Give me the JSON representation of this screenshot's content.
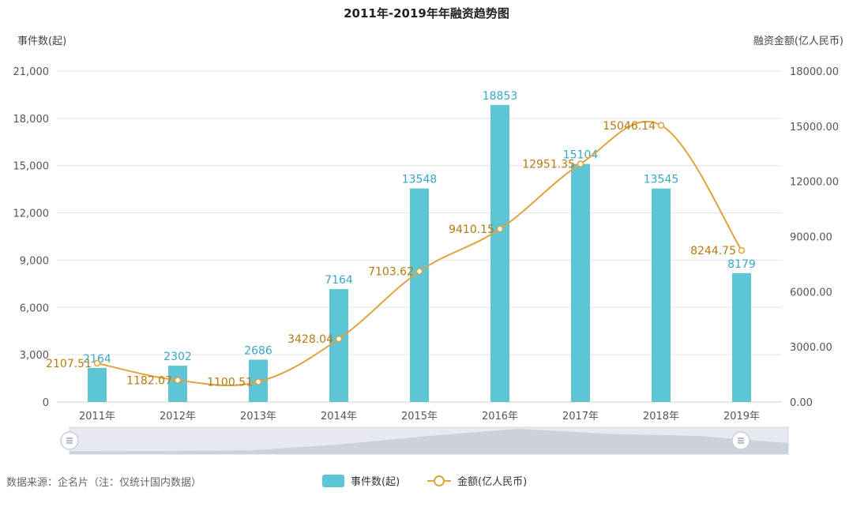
{
  "title": "2011年-2019年年融资趋势图",
  "left_axis_name": "事件数(起)",
  "right_axis_name": "融资金额(亿人民币)",
  "source": "数据来源：企名片（注：仅统计国内数据）",
  "legend": {
    "bar": "事件数(起)",
    "line": "金额(亿人民币)"
  },
  "colors": {
    "bar": "#5ec5d6",
    "line": "#e0a33d",
    "point_fill": "#ffffff",
    "bar_label": "#36a8c4",
    "line_label": "#b57a10",
    "grid": "#e4e4e4",
    "zoom_track": "#e6e9ef",
    "zoom_area": "#c9ced9"
  },
  "left_axis_ticks": [
    "0",
    "3,000",
    "6,000",
    "9,000",
    "12,000",
    "15,000",
    "18,000",
    "21,000"
  ],
  "right_axis_ticks": [
    "0.00",
    "3000.00",
    "6000.00",
    "9000.00",
    "12000.00",
    "15000.00",
    "18000.00"
  ],
  "chart_data": {
    "type": "bar",
    "title": "2011年-2019年年融资趋势图",
    "categories": [
      "2011年",
      "2012年",
      "2013年",
      "2014年",
      "2015年",
      "2016年",
      "2017年",
      "2018年",
      "2019年"
    ],
    "series": [
      {
        "name": "事件数(起)",
        "type": "bar",
        "axis": "left",
        "values": [
          2164,
          2302,
          2686,
          7164,
          13548,
          18853,
          15104,
          13545,
          8179
        ],
        "labels": [
          "2164",
          "2302",
          "2686",
          "7164",
          "13548",
          "18853",
          "15104",
          "13545",
          "8179"
        ]
      },
      {
        "name": "金额(亿人民币)",
        "type": "line",
        "axis": "right",
        "values": [
          2107.51,
          1182.07,
          1100.51,
          3428.04,
          7103.62,
          9410.15,
          12951.35,
          15046.14,
          8244.75
        ],
        "labels": [
          "2107.51",
          "1182.07",
          "1100.51",
          "3428.04",
          "7103.62",
          "9410.15",
          "12951.35",
          "15046.14",
          "8244.75"
        ]
      }
    ],
    "ylim_left": [
      0,
      21000
    ],
    "ylim_right": [
      0,
      18000
    ],
    "ylabel_left": "事件数(起)",
    "ylabel_right": "融资金额(亿人民币)",
    "grid": true,
    "legend_position": "bottom-center"
  }
}
